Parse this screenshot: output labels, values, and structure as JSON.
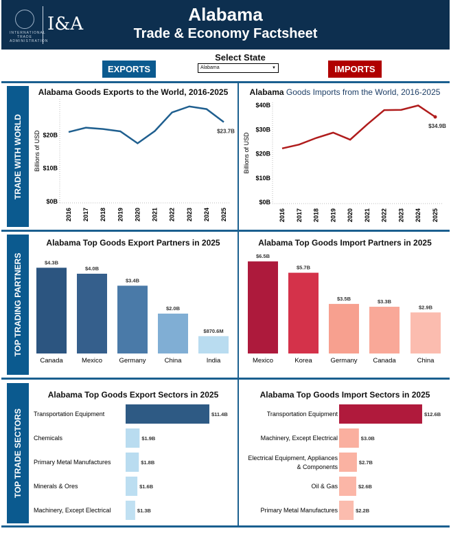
{
  "header": {
    "title": "Alabama",
    "subtitle": "Trade & Economy Factsheet",
    "logo_text": "I&A",
    "agency_text": "INTERNATIONAL TRADE ADMINISTRATION"
  },
  "controls": {
    "select_label": "Select State",
    "selected_state": "Alabama",
    "exports_label": "EXPORTS",
    "imports_label": "IMPORTS"
  },
  "sections": {
    "trade_with_world": "TRADE WITH WORLD",
    "top_trading_partners": "TOP TRADING PARTNERS",
    "top_trade_sectors": "TOP TRADE SECTORS"
  },
  "colors": {
    "navy": "#0d2f4f",
    "accent_blue": "#0b5a8f",
    "accent_red": "#b00000",
    "export_line": "#1f5f8f",
    "import_line": "#b01c1c"
  },
  "chart_data": [
    {
      "id": "exports_world",
      "type": "line",
      "title": "Alabama Goods Exports to the World, 2016-2025",
      "ylabel": "Billions of USD",
      "ylim": [
        0,
        30
      ],
      "yticks": [
        "$0B",
        "$10B",
        "$20B"
      ],
      "ytick_values": [
        0,
        10,
        20
      ],
      "x": [
        "2016",
        "2017",
        "2018",
        "2019",
        "2020",
        "2021",
        "2022",
        "2023",
        "2024",
        "2025"
      ],
      "values": [
        20.7,
        22.0,
        21.6,
        20.9,
        17.3,
        21.0,
        26.6,
        28.4,
        27.6,
        23.7
      ],
      "end_label": "$23.7B",
      "color": "#1f5f8f",
      "grid": false
    },
    {
      "id": "imports_world",
      "type": "line",
      "title": "Alabama Goods Imports from the World, 2016-2025",
      "title_prefix": "Alabama",
      "title_rest": " Goods Imports from the World, 2016-2025",
      "ylabel": "Billions of USD",
      "ylim": [
        0,
        40
      ],
      "yticks": [
        "$0B",
        "$10B",
        "$20B",
        "$30B",
        "$40B"
      ],
      "ytick_values": [
        0,
        10,
        20,
        30,
        40
      ],
      "x": [
        "2016",
        "2017",
        "2018",
        "2019",
        "2020",
        "2021",
        "2022",
        "2023",
        "2024",
        "2025"
      ],
      "values": [
        21.9,
        23.5,
        26.2,
        28.4,
        25.5,
        31.8,
        37.7,
        37.8,
        39.6,
        34.9
      ],
      "end_label": "$34.9B",
      "color": "#b01c1c",
      "grid": false
    },
    {
      "id": "export_partners",
      "type": "bar",
      "title": "Alabama Top Goods Export Partners in 2025",
      "categories": [
        "Canada",
        "Mexico",
        "Germany",
        "China",
        "India"
      ],
      "values": [
        4.3,
        4.0,
        3.4,
        2.0,
        0.8706
      ],
      "labels": [
        "$4.3B",
        "$4.0B",
        "$3.4B",
        "$2.0B",
        "$870.6M"
      ],
      "colors": [
        "#2c5580",
        "#355f8c",
        "#4a7aa8",
        "#80aed4",
        "#b9dcf0"
      ]
    },
    {
      "id": "import_partners",
      "type": "bar",
      "title": "Alabama Top Goods Import Partners in 2025",
      "categories": [
        "Mexico",
        "Korea",
        "Germany",
        "Canada",
        "China"
      ],
      "values": [
        6.5,
        5.7,
        3.5,
        3.3,
        2.9
      ],
      "labels": [
        "$6.5B",
        "$5.7B",
        "$3.5B",
        "$3.3B",
        "$2.9B"
      ],
      "colors": [
        "#ad1a3c",
        "#d4324a",
        "#f7a08f",
        "#f9a898",
        "#fbbcaf"
      ]
    },
    {
      "id": "export_sectors",
      "type": "bar",
      "orientation": "horizontal",
      "title": "Alabama Top Goods Export Sectors in 2025",
      "categories": [
        "Transportation Equipment",
        "Chemicals",
        "Primary Metal Manufactures",
        "Minerals & Ores",
        "Machinery, Except Electrical"
      ],
      "values": [
        11.4,
        1.9,
        1.8,
        1.6,
        1.3
      ],
      "labels": [
        "$11.4B",
        "$1.9B",
        "$1.8B",
        "$1.6B",
        "$1.3B"
      ],
      "colors": [
        "#2e5a84",
        "#b9dcf0",
        "#b9dcf0",
        "#bcdef1",
        "#c0e0f2"
      ]
    },
    {
      "id": "import_sectors",
      "type": "bar",
      "orientation": "horizontal",
      "title": "Alabama Top Goods Import Sectors in 2025",
      "categories": [
        "Transportation Equipment",
        "Machinery, Except Electrical",
        "Electrical Equipment, Appliances & Components",
        "Oil & Gas",
        "Primary Metal Manufactures"
      ],
      "values": [
        12.6,
        3.0,
        2.7,
        2.6,
        2.2
      ],
      "labels": [
        "$12.6B",
        "$3.0B",
        "$2.7B",
        "$2.6B",
        "$2.2B"
      ],
      "colors": [
        "#b01a3c",
        "#faaf9f",
        "#fab2a2",
        "#fbb6a7",
        "#fbbcae"
      ]
    }
  ]
}
